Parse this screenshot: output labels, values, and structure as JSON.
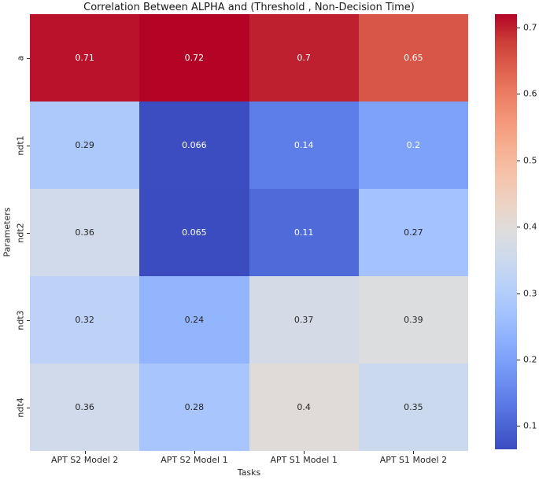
{
  "title": "Correlation Between ALPHA and (Threshold , Non-Decision Time)",
  "chart_data": {
    "type": "heatmap",
    "title": "Correlation Between ALPHA and (Threshold , Non-Decision Time)",
    "xlabel": "Tasks",
    "ylabel": "Parameters",
    "columns": [
      "APT S2 Model 2",
      "APT S2 Model 1",
      "APT S1 Model 1",
      "APT S1 Model 2"
    ],
    "rows": [
      "a",
      "ndt1",
      "ndt2",
      "ndt3",
      "ndt4"
    ],
    "values": [
      [
        0.71,
        0.72,
        0.7,
        0.65
      ],
      [
        0.29,
        0.066,
        0.14,
        0.2
      ],
      [
        0.36,
        0.065,
        0.11,
        0.27
      ],
      [
        0.32,
        0.24,
        0.37,
        0.39
      ],
      [
        0.36,
        0.28,
        0.4,
        0.35
      ]
    ],
    "cell_labels": [
      [
        "0.71",
        "0.72",
        "0.7",
        "0.65"
      ],
      [
        "0.29",
        "0.066",
        "0.14",
        "0.2"
      ],
      [
        "0.36",
        "0.065",
        "0.11",
        "0.27"
      ],
      [
        "0.32",
        "0.24",
        "0.37",
        "0.39"
      ],
      [
        "0.36",
        "0.28",
        "0.4",
        "0.35"
      ]
    ],
    "vmin": 0.065,
    "vmax": 0.72,
    "colormap": "coolwarm",
    "annotations": true,
    "grid": false,
    "legend_position": "right-colorbar",
    "colorbar_ticks": [
      0.1,
      0.2,
      0.3,
      0.4,
      0.5,
      0.6,
      0.7
    ],
    "colorbar_tick_labels": [
      "0.1",
      "0.2",
      "0.3",
      "0.4",
      "0.5",
      "0.6",
      "0.7"
    ]
  },
  "colors": {
    "background": "#ffffff",
    "coolwarm_min": "#3b4cc0",
    "coolwarm_mid": "#dddddd",
    "coolwarm_max": "#b40426",
    "annotation_dark": "#262626",
    "annotation_light": "#ffffff",
    "axis_text": "#262626"
  }
}
